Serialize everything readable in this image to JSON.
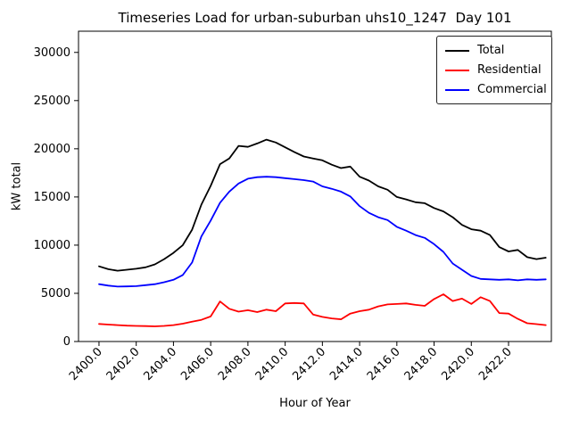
{
  "chart_data": {
    "type": "line",
    "title": "Timeseries Load for urban-suburban uhs10_1247  Day 101",
    "xlabel": "Hour of Year",
    "ylabel": "kW total",
    "grid": false,
    "legend_position": "upper right",
    "x_tick_rotation": 45,
    "xlim": [
      2398.9,
      2424.3
    ],
    "ylim": [
      0,
      32200
    ],
    "x": [
      2400.0,
      2400.5,
      2401.0,
      2401.5,
      2402.0,
      2402.5,
      2403.0,
      2403.5,
      2404.0,
      2404.5,
      2405.0,
      2405.5,
      2406.0,
      2406.5,
      2407.0,
      2407.5,
      2408.0,
      2408.5,
      2409.0,
      2409.5,
      2410.0,
      2410.5,
      2411.0,
      2411.5,
      2412.0,
      2412.5,
      2413.0,
      2413.5,
      2414.0,
      2414.5,
      2415.0,
      2415.5,
      2416.0,
      2416.5,
      2417.0,
      2417.5,
      2418.0,
      2418.5,
      2419.0,
      2419.5,
      2420.0,
      2420.5,
      2421.0,
      2421.5,
      2422.0,
      2422.5,
      2423.0,
      2423.5,
      2424.0
    ],
    "series": [
      {
        "name": "Total",
        "color": "#000000",
        "values": [
          7800,
          7500,
          7350,
          7450,
          7550,
          7700,
          8000,
          8550,
          9200,
          10000,
          11600,
          14200,
          16150,
          18400,
          19000,
          20300,
          20200,
          20550,
          20950,
          20650,
          20150,
          19650,
          19200,
          19000,
          18800,
          18350,
          18000,
          18150,
          17100,
          16700,
          16100,
          15750,
          15000,
          14750,
          14450,
          14350,
          13850,
          13500,
          12900,
          12100,
          11650,
          11500,
          11050,
          9800,
          9350,
          9500,
          8750,
          8550,
          8700
        ]
      },
      {
        "name": "Residential",
        "color": "#ff0000",
        "values": [
          1820,
          1760,
          1700,
          1650,
          1620,
          1600,
          1570,
          1620,
          1700,
          1850,
          2060,
          2250,
          2600,
          4150,
          3400,
          3100,
          3250,
          3050,
          3300,
          3150,
          3950,
          4000,
          3950,
          2800,
          2550,
          2400,
          2300,
          2900,
          3150,
          3300,
          3650,
          3850,
          3900,
          3950,
          3800,
          3700,
          4400,
          4900,
          4200,
          4450,
          3900,
          4600,
          4200,
          2950,
          2900,
          2350,
          1900,
          1800,
          1700
        ]
      },
      {
        "name": "Commercial",
        "color": "#0000ff",
        "values": [
          5950,
          5800,
          5700,
          5720,
          5750,
          5850,
          5950,
          6150,
          6400,
          6900,
          8200,
          10900,
          12550,
          14400,
          15550,
          16400,
          16900,
          17050,
          17100,
          17050,
          16950,
          16850,
          16750,
          16600,
          16100,
          15850,
          15550,
          15050,
          14050,
          13350,
          12900,
          12600,
          11900,
          11500,
          11050,
          10750,
          10100,
          9300,
          8100,
          7450,
          6800,
          6500,
          6450,
          6400,
          6450,
          6350,
          6450,
          6400,
          6450
        ]
      }
    ],
    "xticks": {
      "values": [
        2400,
        2402,
        2404,
        2406,
        2408,
        2410,
        2412,
        2414,
        2416,
        2418,
        2420,
        2422
      ],
      "labels": [
        "2400.0",
        "2402.0",
        "2404.0",
        "2406.0",
        "2408.0",
        "2410.0",
        "2412.0",
        "2414.0",
        "2416.0",
        "2418.0",
        "2420.0",
        "2422.0"
      ]
    },
    "yticks": {
      "values": [
        0,
        5000,
        10000,
        15000,
        20000,
        25000,
        30000
      ],
      "labels": [
        "0",
        "5000",
        "10000",
        "15000",
        "20000",
        "25000",
        "30000"
      ]
    }
  }
}
